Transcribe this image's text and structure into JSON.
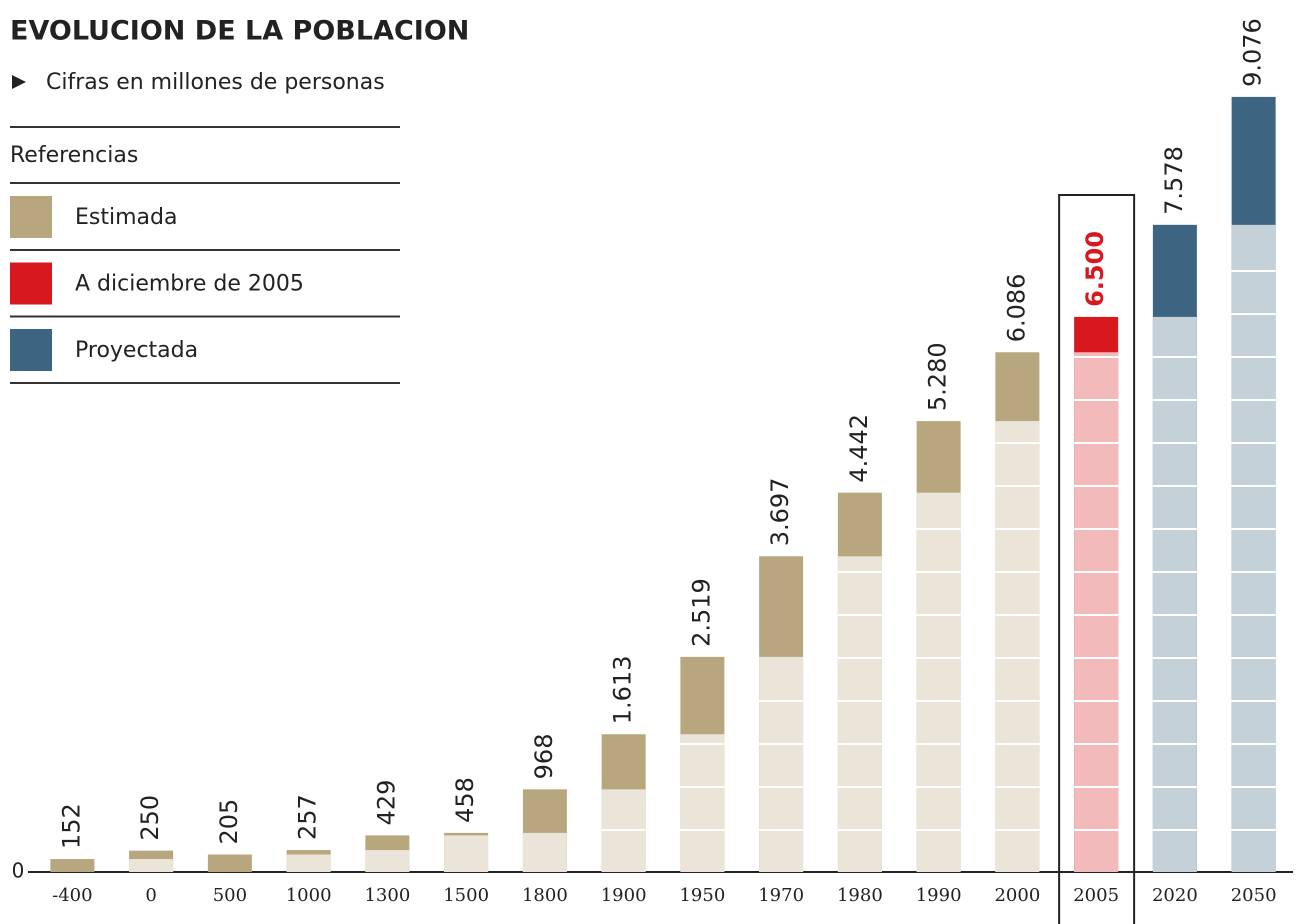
{
  "chart_data": {
    "type": "bar",
    "title": "EVOLUCION DE LA POBLACION",
    "subtitle": "Cifras en millones de personas",
    "legend_title": "Referencias",
    "legend": [
      {
        "name": "Estimada",
        "color": "#b8a77e"
      },
      {
        "name": "A diciembre de 2005",
        "color": "#d7191f"
      },
      {
        "name": "Proyectada",
        "color": "#3d6480"
      }
    ],
    "categories": [
      "-400",
      "0",
      "500",
      "1000",
      "1300",
      "1500",
      "1800",
      "1900",
      "1950",
      "1970",
      "1980",
      "1990",
      "2000",
      "2005",
      "2020",
      "2050"
    ],
    "values": [
      152,
      250,
      205,
      257,
      429,
      458,
      968,
      1613,
      2519,
      3697,
      4442,
      5280,
      6086,
      6500,
      7578,
      9076
    ],
    "value_labels": [
      "152",
      "250",
      "205",
      "257",
      "429",
      "458",
      "968",
      "1.613",
      "2.519",
      "3.697",
      "4.442",
      "5.280",
      "6.086",
      "6.500",
      "7.578",
      "9.076"
    ],
    "colors": [
      "#b8a77e",
      "#b8a77e",
      "#b8a77e",
      "#b8a77e",
      "#b8a77e",
      "#b8a77e",
      "#b8a77e",
      "#b8a77e",
      "#b8a77e",
      "#b8a77e",
      "#b8a77e",
      "#b8a77e",
      "#b8a77e",
      "#d7191f",
      "#3d6480",
      "#3d6480"
    ],
    "ylim": [
      0,
      10000
    ],
    "yticks": [
      0
    ]
  }
}
